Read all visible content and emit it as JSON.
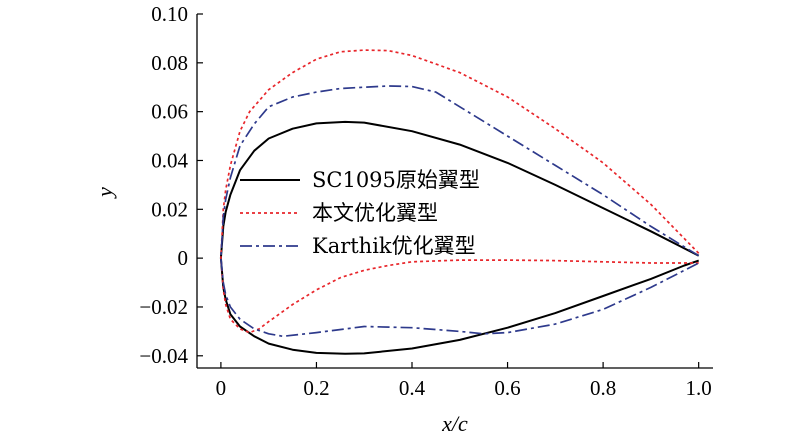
{
  "chart_data": {
    "type": "line",
    "title": "",
    "xlabel": "x/c",
    "ylabel": "y",
    "xlim": [
      -0.05,
      1.03
    ],
    "ylim": [
      -0.045,
      0.1
    ],
    "xticks": [
      0,
      0.2,
      0.4,
      0.6,
      0.8,
      1.0
    ],
    "xtick_labels": [
      "0",
      "0.2",
      "0.4",
      "0.6",
      "0.8",
      "1.0"
    ],
    "yticks": [
      -0.04,
      -0.02,
      0,
      0.02,
      0.04,
      0.06,
      0.08,
      0.1
    ],
    "ytick_labels": [
      "−0.04",
      "−0.02",
      "0",
      "0.02",
      "0.04",
      "0.06",
      "0.08",
      "0.10"
    ],
    "grid": false,
    "legend_position": "center-left",
    "series": [
      {
        "name": "SC1095原始翼型",
        "color": "#000000",
        "style": "solid",
        "upper": [
          [
            0,
            0
          ],
          [
            0.005,
            0.013
          ],
          [
            0.01,
            0.019
          ],
          [
            0.02,
            0.026
          ],
          [
            0.04,
            0.036
          ],
          [
            0.07,
            0.044
          ],
          [
            0.1,
            0.049
          ],
          [
            0.15,
            0.053
          ],
          [
            0.2,
            0.0552
          ],
          [
            0.26,
            0.0558
          ],
          [
            0.3,
            0.0555
          ],
          [
            0.4,
            0.052
          ],
          [
            0.5,
            0.0465
          ],
          [
            0.6,
            0.039
          ],
          [
            0.7,
            0.03
          ],
          [
            0.8,
            0.0205
          ],
          [
            0.9,
            0.011
          ],
          [
            0.97,
            0.004
          ],
          [
            1.0,
            0.001
          ]
        ],
        "lower": [
          [
            0,
            0
          ],
          [
            0.005,
            -0.012
          ],
          [
            0.01,
            -0.017
          ],
          [
            0.02,
            -0.023
          ],
          [
            0.04,
            -0.028
          ],
          [
            0.07,
            -0.032
          ],
          [
            0.1,
            -0.035
          ],
          [
            0.15,
            -0.0375
          ],
          [
            0.2,
            -0.0388
          ],
          [
            0.26,
            -0.0392
          ],
          [
            0.3,
            -0.039
          ],
          [
            0.4,
            -0.037
          ],
          [
            0.5,
            -0.0335
          ],
          [
            0.6,
            -0.0285
          ],
          [
            0.7,
            -0.0225
          ],
          [
            0.8,
            -0.0155
          ],
          [
            0.9,
            -0.0085
          ],
          [
            0.97,
            -0.003
          ],
          [
            1.0,
            -0.001
          ]
        ]
      },
      {
        "name": "本文优化翼型",
        "color": "#e8262b",
        "style": "dotted",
        "upper": [
          [
            0,
            0
          ],
          [
            0.005,
            0.02
          ],
          [
            0.01,
            0.028
          ],
          [
            0.02,
            0.038
          ],
          [
            0.04,
            0.052
          ],
          [
            0.06,
            0.06
          ],
          [
            0.1,
            0.069
          ],
          [
            0.15,
            0.076
          ],
          [
            0.2,
            0.0815
          ],
          [
            0.25,
            0.0845
          ],
          [
            0.3,
            0.0852
          ],
          [
            0.35,
            0.085
          ],
          [
            0.4,
            0.083
          ],
          [
            0.5,
            0.076
          ],
          [
            0.6,
            0.066
          ],
          [
            0.7,
            0.053
          ],
          [
            0.8,
            0.039
          ],
          [
            0.9,
            0.022
          ],
          [
            0.95,
            0.012
          ],
          [
            1.0,
            0.002
          ]
        ],
        "lower": [
          [
            0,
            0
          ],
          [
            0.005,
            -0.013
          ],
          [
            0.01,
            -0.019
          ],
          [
            0.02,
            -0.025
          ],
          [
            0.04,
            -0.029
          ],
          [
            0.06,
            -0.0305
          ],
          [
            0.08,
            -0.029
          ],
          [
            0.1,
            -0.026
          ],
          [
            0.15,
            -0.019
          ],
          [
            0.2,
            -0.013
          ],
          [
            0.25,
            -0.008
          ],
          [
            0.3,
            -0.005
          ],
          [
            0.35,
            -0.003
          ],
          [
            0.4,
            -0.0015
          ],
          [
            0.5,
            -0.0008
          ],
          [
            0.6,
            -0.0008
          ],
          [
            0.7,
            -0.001
          ],
          [
            0.8,
            -0.0015
          ],
          [
            0.9,
            -0.002
          ],
          [
            1.0,
            -0.002
          ]
        ]
      },
      {
        "name": "Karthik优化翼型",
        "color": "#2e3a8c",
        "style": "dashdot",
        "upper": [
          [
            0,
            0
          ],
          [
            0.005,
            0.017
          ],
          [
            0.01,
            0.024
          ],
          [
            0.02,
            0.033
          ],
          [
            0.04,
            0.046
          ],
          [
            0.07,
            0.055
          ],
          [
            0.1,
            0.062
          ],
          [
            0.15,
            0.066
          ],
          [
            0.2,
            0.068
          ],
          [
            0.25,
            0.0695
          ],
          [
            0.3,
            0.07
          ],
          [
            0.35,
            0.0705
          ],
          [
            0.4,
            0.0703
          ],
          [
            0.45,
            0.068
          ],
          [
            0.5,
            0.062
          ],
          [
            0.6,
            0.05
          ],
          [
            0.7,
            0.038
          ],
          [
            0.8,
            0.026
          ],
          [
            0.9,
            0.013
          ],
          [
            1.0,
            0.001
          ]
        ],
        "lower": [
          [
            0,
            0
          ],
          [
            0.005,
            -0.01
          ],
          [
            0.01,
            -0.015
          ],
          [
            0.02,
            -0.02
          ],
          [
            0.04,
            -0.025
          ],
          [
            0.07,
            -0.029
          ],
          [
            0.1,
            -0.031
          ],
          [
            0.13,
            -0.032
          ],
          [
            0.2,
            -0.0305
          ],
          [
            0.3,
            -0.028
          ],
          [
            0.4,
            -0.0285
          ],
          [
            0.5,
            -0.03
          ],
          [
            0.55,
            -0.031
          ],
          [
            0.6,
            -0.0305
          ],
          [
            0.7,
            -0.027
          ],
          [
            0.8,
            -0.021
          ],
          [
            0.9,
            -0.012
          ],
          [
            0.95,
            -0.007
          ],
          [
            1.0,
            -0.002
          ]
        ]
      }
    ]
  }
}
